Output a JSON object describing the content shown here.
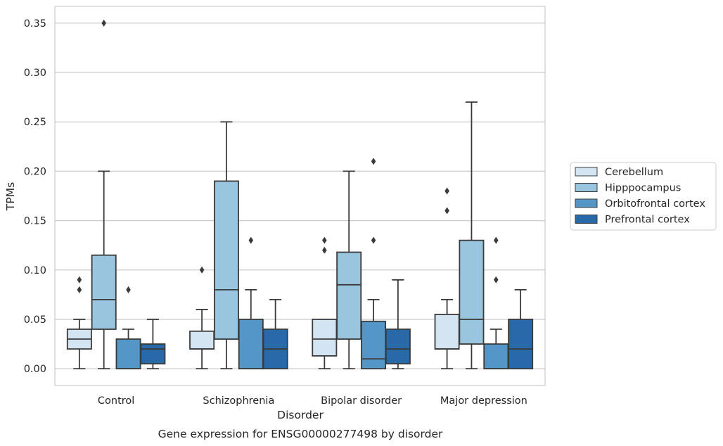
{
  "chart_data": {
    "type": "box",
    "caption": "Gene expression for ENSG00000277498 by disorder",
    "xlabel": "Disorder",
    "ylabel": "TPMs",
    "ylim": [
      -0.017,
      0.367
    ],
    "yticks": [
      "0.00",
      "0.05",
      "0.10",
      "0.15",
      "0.20",
      "0.25",
      "0.30",
      "0.35"
    ],
    "grid": true,
    "legend_position": "right",
    "categories": [
      "Control",
      "Schizophrenia",
      "Bipolar disorder",
      "Major depression"
    ],
    "series": [
      {
        "name": "Cerebellum",
        "color": "#d3e4f3",
        "boxes": [
          {
            "whisker_low": 0.0,
            "q1": 0.02,
            "median": 0.03,
            "q3": 0.04,
            "whisker_high": 0.05,
            "outliers": [
              0.08,
              0.09
            ]
          },
          {
            "whisker_low": 0.0,
            "q1": 0.02,
            "median": 0.02,
            "q3": 0.038,
            "whisker_high": 0.06,
            "outliers": [
              0.1
            ]
          },
          {
            "whisker_low": 0.0,
            "q1": 0.013,
            "median": 0.03,
            "q3": 0.05,
            "whisker_high": 0.05,
            "outliers": [
              0.12,
              0.13
            ]
          },
          {
            "whisker_low": 0.0,
            "q1": 0.02,
            "median": 0.02,
            "q3": 0.055,
            "whisker_high": 0.07,
            "outliers": [
              0.16,
              0.18
            ]
          }
        ]
      },
      {
        "name": "Hipppocampus",
        "color": "#9ac5df",
        "boxes": [
          {
            "whisker_low": 0.0,
            "q1": 0.04,
            "median": 0.07,
            "q3": 0.115,
            "whisker_high": 0.2,
            "outliers": [
              0.35
            ]
          },
          {
            "whisker_low": 0.0,
            "q1": 0.03,
            "median": 0.08,
            "q3": 0.19,
            "whisker_high": 0.25,
            "outliers": []
          },
          {
            "whisker_low": 0.0,
            "q1": 0.03,
            "median": 0.085,
            "q3": 0.118,
            "whisker_high": 0.2,
            "outliers": []
          },
          {
            "whisker_low": 0.0,
            "q1": 0.025,
            "median": 0.05,
            "q3": 0.13,
            "whisker_high": 0.27,
            "outliers": []
          }
        ]
      },
      {
        "name": "Orbitofrontal cortex",
        "color": "#5496c8",
        "boxes": [
          {
            "whisker_low": 0.0,
            "q1": 0.0,
            "median": 0.0,
            "q3": 0.03,
            "whisker_high": 0.04,
            "outliers": [
              0.08
            ]
          },
          {
            "whisker_low": 0.0,
            "q1": 0.0,
            "median": 0.0,
            "q3": 0.05,
            "whisker_high": 0.08,
            "outliers": [
              0.13
            ]
          },
          {
            "whisker_low": 0.0,
            "q1": 0.0,
            "median": 0.01,
            "q3": 0.048,
            "whisker_high": 0.07,
            "outliers": [
              0.13,
              0.21
            ]
          },
          {
            "whisker_low": 0.0,
            "q1": 0.0,
            "median": 0.0,
            "q3": 0.025,
            "whisker_high": 0.04,
            "outliers": [
              0.09,
              0.13
            ]
          }
        ]
      },
      {
        "name": "Prefrontal cortex",
        "color": "#2769a9",
        "boxes": [
          {
            "whisker_low": 0.0,
            "q1": 0.005,
            "median": 0.02,
            "q3": 0.025,
            "whisker_high": 0.05,
            "outliers": []
          },
          {
            "whisker_low": 0.0,
            "q1": 0.0,
            "median": 0.02,
            "q3": 0.04,
            "whisker_high": 0.07,
            "outliers": []
          },
          {
            "whisker_low": 0.0,
            "q1": 0.005,
            "median": 0.02,
            "q3": 0.04,
            "whisker_high": 0.09,
            "outliers": []
          },
          {
            "whisker_low": 0.0,
            "q1": 0.0,
            "median": 0.02,
            "q3": 0.05,
            "whisker_high": 0.08,
            "outliers": []
          }
        ]
      }
    ]
  }
}
